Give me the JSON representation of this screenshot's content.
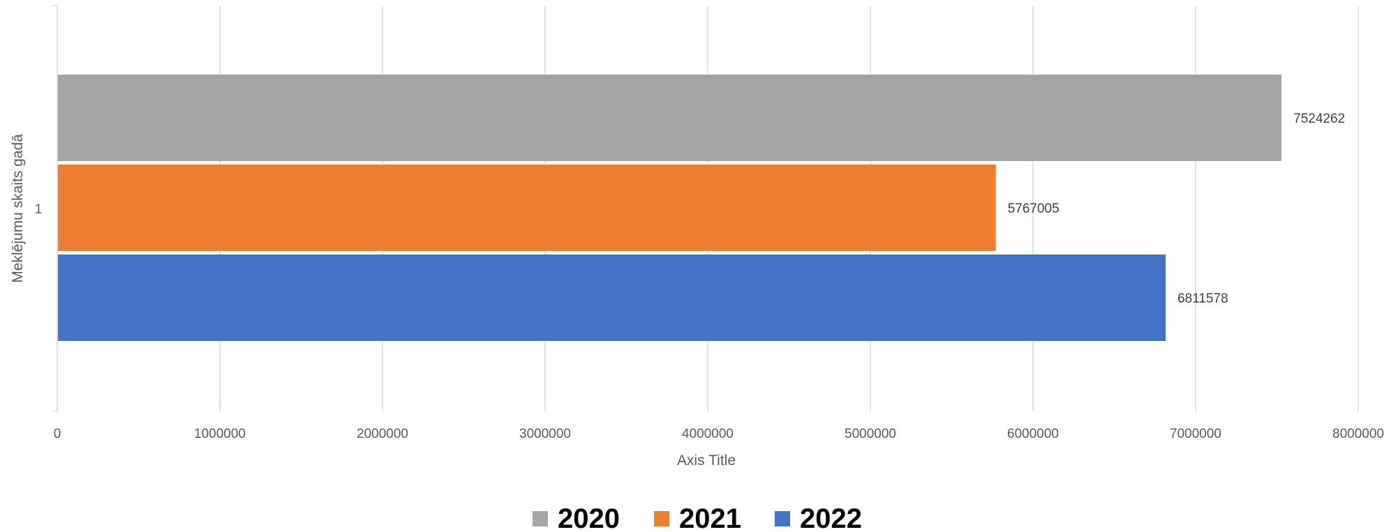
{
  "chart_data": {
    "type": "bar",
    "orientation": "horizontal",
    "categories": [
      "1"
    ],
    "series": [
      {
        "name": "2020",
        "values": [
          7524262
        ],
        "color": "#A5A5A5"
      },
      {
        "name": "2021",
        "values": [
          5767005
        ],
        "color": "#ED7D31"
      },
      {
        "name": "2022",
        "values": [
          6811578
        ],
        "color": "#4472C4"
      }
    ],
    "xlabel": "Axis Title",
    "ylabel": "Meklējumu skaits gadā",
    "xlim": [
      0,
      8000000
    ],
    "x_ticks": [
      "0",
      "1000000",
      "2000000",
      "3000000",
      "4000000",
      "5000000",
      "6000000",
      "7000000",
      "8000000"
    ],
    "grid": true,
    "legend_position": "bottom",
    "data_labels": true
  }
}
